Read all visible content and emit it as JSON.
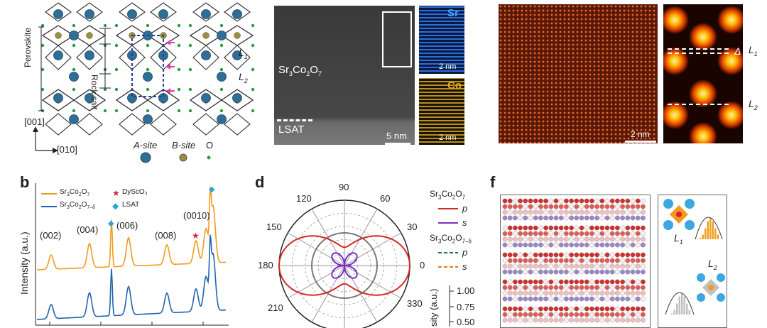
{
  "panel_a": {
    "axis_001": "[001]",
    "axis_010": "[010]",
    "perovskite": "Perovskite",
    "rock_salt": "Rock salt",
    "L1": "L",
    "L1_sub": "1",
    "L2": "L",
    "L2_sub": "2",
    "legend_a": "A-site",
    "legend_b": "B-site",
    "legend_o": "O"
  },
  "panel_c": {
    "film_label_pre": "Sr",
    "film_sub1": "3",
    "film_mid1": "Co",
    "film_sub2": "2",
    "film_mid2": "O",
    "film_sub3": "7",
    "substrate": "LSAT",
    "scale_main": "5 nm",
    "sr_label": "Sr",
    "co_label": "Co",
    "scale_sr": "2 nm",
    "scale_co": "2 nm",
    "colors": {
      "sr": "#2a6de0",
      "co": "#e0b020"
    }
  },
  "panel_e": {
    "scale": "2 nm",
    "delta": "Δ",
    "L1": "L",
    "L1_sub": "1",
    "L2": "L",
    "L2_sub": "2"
  },
  "panel_b": {
    "letter": "b",
    "ylabel": "Intensity (a.u.)",
    "legend": [
      {
        "text": "Sr",
        "s1": "3",
        "t2": "Co",
        "s2": "2",
        "t3": "O",
        "s3": "7",
        "color": "#f29a1e"
      },
      {
        "text": "Sr",
        "s1": "3",
        "t2": "Co",
        "s2": "2",
        "t3": "O",
        "s3": "7–δ",
        "color": "#1f63b0"
      }
    ],
    "marker_legend": [
      {
        "text": "DyScO₃",
        "color": "#d8203a"
      },
      {
        "text": "LSAT",
        "color": "#29a6d9"
      }
    ],
    "peaks": [
      "(002)",
      "(004)",
      "(006)",
      "(008)",
      "(0010)"
    ]
  },
  "panel_d": {
    "letter": "d",
    "angles": [
      "90",
      "60",
      "30",
      "0",
      "330",
      "210",
      "180",
      "150",
      "120"
    ],
    "legend_title1_pre": "Sr",
    "legend_title1": [
      "3",
      "Co",
      "2",
      "O",
      "7"
    ],
    "legend_title2": [
      "3",
      "Co",
      "2",
      "O",
      "7–δ"
    ],
    "p": "p",
    "s": "s",
    "scale_values": [
      "1.00",
      "0.75",
      "0.50"
    ],
    "scale_label": "sity (a.u.)",
    "colors": {
      "p1": "#d62828",
      "s1": "#7a2cc8",
      "p2": "#1f7a45",
      "s2": "#e07a1a"
    }
  },
  "panel_f": {
    "letter": "f",
    "L1": "L",
    "L1_sub": "1",
    "L2": "L",
    "L2_sub": "2"
  },
  "chart_data": [
    {
      "type": "line",
      "panel": "b",
      "ylabel": "Intensity (a.u.)",
      "series": [
        {
          "name": "Sr3Co2O7"
        },
        {
          "name": "Sr3Co2O7–δ"
        }
      ],
      "annotations": [
        "(002)",
        "(004)",
        "(006)",
        "(008)",
        "(0010)"
      ]
    },
    {
      "type": "polar",
      "panel": "d",
      "angle_ticks": [
        90,
        60,
        30,
        0,
        330,
        210,
        180,
        150,
        120
      ],
      "radial_ticks": [
        0.5,
        0.75,
        1.0
      ]
    }
  ]
}
